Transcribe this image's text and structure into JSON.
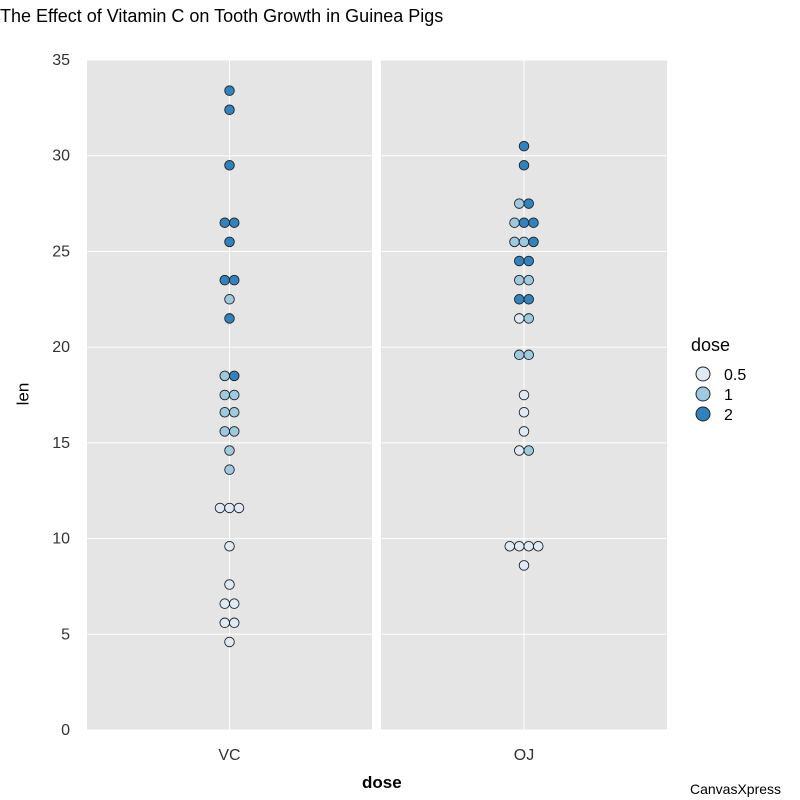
{
  "chart_data": {
    "type": "scatter",
    "subtype": "dotplot",
    "title": "The Effect of Vitamin C on Tooth Growth in Guinea Pigs",
    "xlabel": "dose",
    "ylabel": "len",
    "ylim": [
      0,
      35
    ],
    "yticks": [
      0,
      5,
      10,
      15,
      20,
      25,
      30,
      35
    ],
    "grid": true,
    "legend": {
      "title": "dose",
      "placement": "right",
      "entries": [
        "0.5",
        "1",
        "2"
      ]
    },
    "colors": {
      "0.5": "#deebf7",
      "1": "#9ecae1",
      "2": "#3182bd"
    },
    "panels": [
      {
        "label": "VC",
        "points": [
          [
            33.4,
            "2"
          ],
          [
            32.4,
            "2"
          ],
          [
            29.5,
            "2"
          ],
          [
            26.5,
            "2"
          ],
          [
            26.5,
            "2"
          ],
          [
            25.5,
            "2"
          ],
          [
            23.5,
            "2"
          ],
          [
            23.5,
            "2"
          ],
          [
            22.5,
            "1"
          ],
          [
            21.5,
            "2"
          ],
          [
            18.5,
            "1"
          ],
          [
            18.5,
            "2"
          ],
          [
            17.5,
            "1"
          ],
          [
            17.5,
            "1"
          ],
          [
            16.6,
            "1"
          ],
          [
            16.6,
            "1"
          ],
          [
            15.6,
            "1"
          ],
          [
            15.6,
            "1"
          ],
          [
            14.6,
            "1"
          ],
          [
            13.6,
            "1"
          ],
          [
            11.6,
            "0.5"
          ],
          [
            11.6,
            "0.5"
          ],
          [
            11.6,
            "0.5"
          ],
          [
            9.6,
            "0.5"
          ],
          [
            7.6,
            "0.5"
          ],
          [
            6.6,
            "0.5"
          ],
          [
            6.6,
            "0.5"
          ],
          [
            5.6,
            "0.5"
          ],
          [
            5.6,
            "0.5"
          ],
          [
            4.6,
            "0.5"
          ]
        ]
      },
      {
        "label": "OJ",
        "points": [
          [
            30.5,
            "2"
          ],
          [
            29.5,
            "2"
          ],
          [
            27.5,
            "1"
          ],
          [
            27.5,
            "2"
          ],
          [
            26.5,
            "1"
          ],
          [
            26.5,
            "2"
          ],
          [
            26.5,
            "2"
          ],
          [
            25.5,
            "1"
          ],
          [
            25.5,
            "1"
          ],
          [
            25.5,
            "2"
          ],
          [
            24.5,
            "2"
          ],
          [
            24.5,
            "2"
          ],
          [
            23.5,
            "1"
          ],
          [
            23.5,
            "1"
          ],
          [
            22.5,
            "2"
          ],
          [
            22.5,
            "2"
          ],
          [
            21.5,
            "0.5"
          ],
          [
            21.5,
            "1"
          ],
          [
            19.6,
            "1"
          ],
          [
            19.6,
            "1"
          ],
          [
            17.5,
            "0.5"
          ],
          [
            16.6,
            "0.5"
          ],
          [
            15.6,
            "0.5"
          ],
          [
            14.6,
            "0.5"
          ],
          [
            14.6,
            "1"
          ],
          [
            9.6,
            "0.5"
          ],
          [
            9.6,
            "0.5"
          ],
          [
            9.6,
            "0.5"
          ],
          [
            9.6,
            "0.5"
          ],
          [
            8.6,
            "0.5"
          ]
        ]
      }
    ]
  },
  "watermark": "CanvasXpress"
}
